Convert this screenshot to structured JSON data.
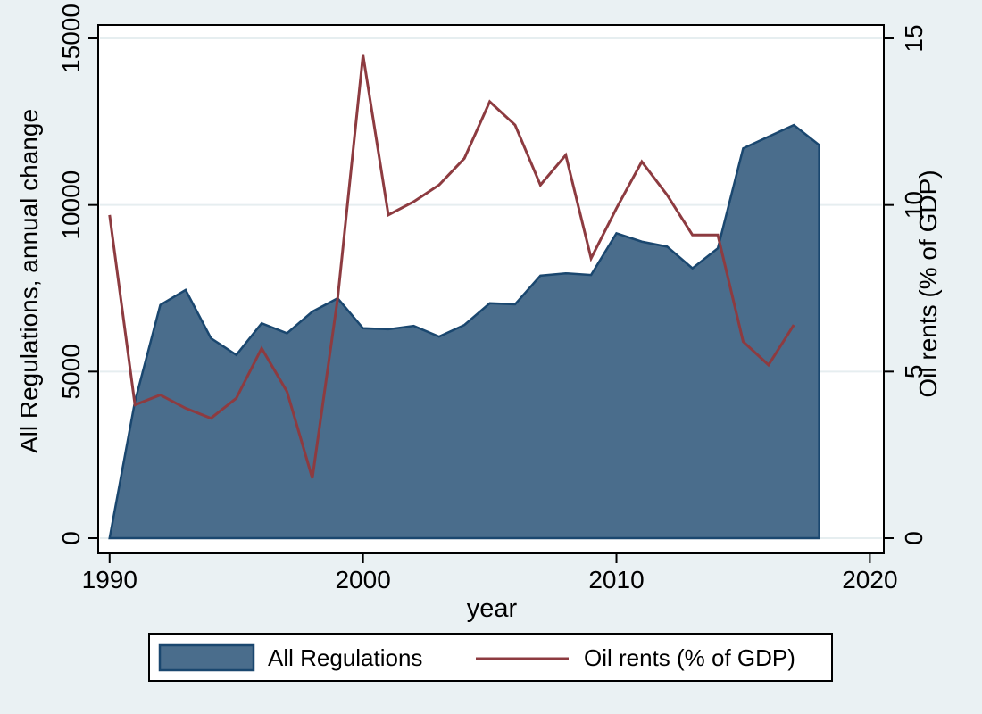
{
  "chart_data": {
    "type": "area",
    "subtype": "dual-axis area + line (Stata style)",
    "grid": "horizontal",
    "legend_position": "bottom",
    "x_axis": {
      "title": "year",
      "tick_values": [
        1990,
        2000,
        2010,
        2020
      ],
      "tick_labels": [
        "1990",
        "2000",
        "2010",
        "2020"
      ],
      "range": [
        1989.55,
        2020.55
      ]
    },
    "left_axis": {
      "title": "All Regulations, annual change",
      "tick_values": [
        0,
        5000,
        10000,
        15000
      ],
      "tick_labels": [
        "0",
        "5000",
        "10000",
        "15000"
      ],
      "range": [
        0,
        15000
      ]
    },
    "right_axis": {
      "title": "Oil rents (% of GDP)",
      "tick_values": [
        0,
        5,
        10,
        15
      ],
      "tick_labels": [
        "0",
        "5",
        "10",
        "15"
      ],
      "range": [
        0,
        15
      ]
    },
    "series": [
      {
        "name": "All Regulations",
        "type": "area",
        "axis": "left",
        "fill": "#4A6D8C",
        "stroke": "#1A476F",
        "years": [
          1990,
          1991,
          1992,
          1993,
          1994,
          1995,
          1996,
          1997,
          1998,
          1999,
          2000,
          2001,
          2002,
          2003,
          2004,
          2005,
          2006,
          2007,
          2008,
          2009,
          2010,
          2011,
          2012,
          2013,
          2014,
          2015,
          2016,
          2017,
          2018
        ],
        "values": [
          0,
          4100,
          7000,
          7450,
          6000,
          5500,
          6450,
          6150,
          6800,
          7200,
          6300,
          6270,
          6370,
          6050,
          6400,
          7050,
          7020,
          7880,
          7950,
          7900,
          9150,
          8900,
          8750,
          8100,
          8700,
          11700,
          12050,
          12400,
          11800
        ]
      },
      {
        "name": "Oil rents (% of GDP)",
        "type": "line",
        "axis": "right",
        "stroke": "#8D3B40",
        "years": [
          1990,
          1991,
          1992,
          1993,
          1994,
          1995,
          1996,
          1997,
          1998,
          1999,
          2000,
          2001,
          2002,
          2003,
          2004,
          2005,
          2006,
          2007,
          2008,
          2009,
          2010,
          2011,
          2012,
          2013,
          2014,
          2015,
          2016,
          2017
        ],
        "values": [
          9.7,
          4.0,
          4.3,
          3.9,
          3.6,
          4.2,
          5.7,
          4.4,
          1.8,
          7.2,
          14.5,
          9.7,
          10.1,
          10.6,
          11.4,
          13.1,
          12.4,
          10.6,
          11.5,
          8.4,
          9.9,
          11.3,
          10.3,
          9.1,
          9.1,
          5.9,
          5.2,
          6.4
        ]
      }
    ],
    "legend": {
      "items": [
        {
          "label": "All Regulations",
          "swatch": "area"
        },
        {
          "label": "Oil rents (% of GDP)",
          "swatch": "line"
        }
      ]
    }
  },
  "colors": {
    "background": "#EAF1F3",
    "plot_background": "#FFFFFF",
    "gridline": "#E6EEF0",
    "frame": "#000000",
    "area_fill": "#4A6D8C",
    "area_stroke": "#1A476F",
    "line_stroke": "#8D3B40",
    "text": "#000000",
    "legend_background": "#FFFFFF",
    "legend_border": "#000000"
  }
}
